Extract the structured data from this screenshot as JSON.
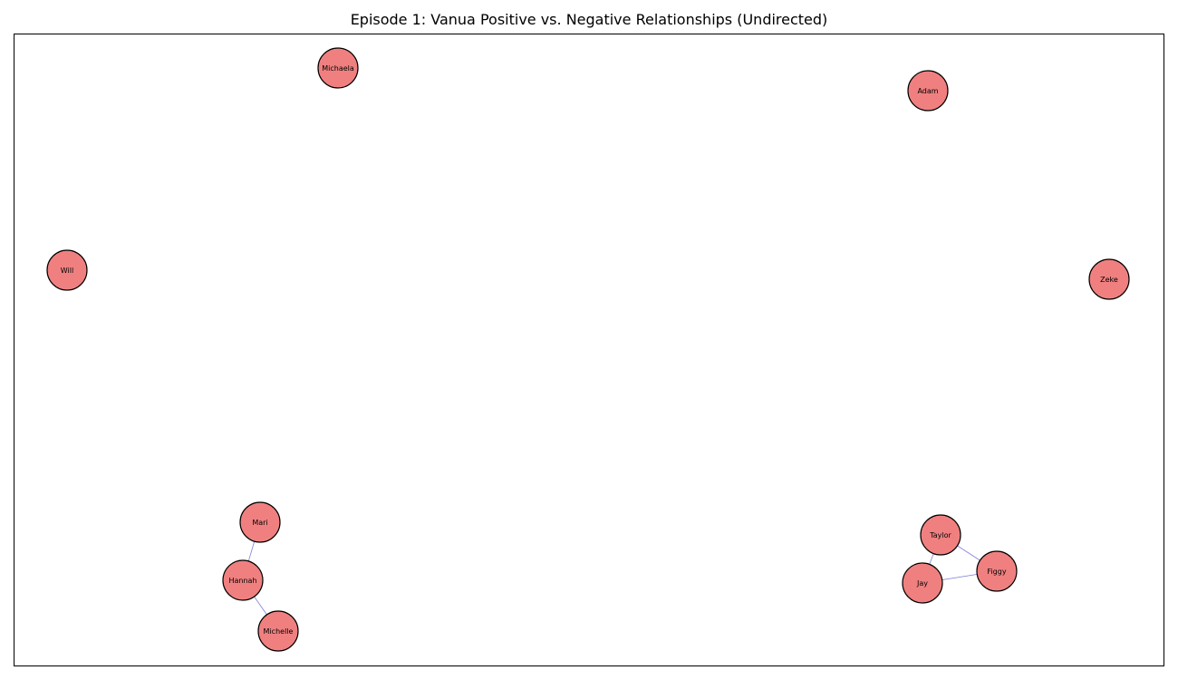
{
  "title": "Episode 1: Vanua Positive vs. Negative Relationships (Undirected)",
  "colors": {
    "node_fill": "#f08080",
    "node_stroke": "#000000",
    "edge": "#8080e0"
  },
  "nodes": [
    {
      "id": "Michaela",
      "label": "Michaela"
    },
    {
      "id": "Adam",
      "label": "Adam"
    },
    {
      "id": "Will",
      "label": "Will"
    },
    {
      "id": "Zeke",
      "label": "Zeke"
    },
    {
      "id": "Mari",
      "label": "Mari"
    },
    {
      "id": "Hannah",
      "label": "Hannah"
    },
    {
      "id": "Michelle",
      "label": "Michelle"
    },
    {
      "id": "Taylor",
      "label": "Taylor"
    },
    {
      "id": "Figgy",
      "label": "Figgy"
    },
    {
      "id": "Jay",
      "label": "Jay"
    }
  ],
  "edges": [
    {
      "source": "Mari",
      "target": "Hannah"
    },
    {
      "source": "Hannah",
      "target": "Michelle"
    },
    {
      "source": "Taylor",
      "target": "Figgy"
    },
    {
      "source": "Taylor",
      "target": "Jay"
    },
    {
      "source": "Jay",
      "target": "Figgy"
    }
  ]
}
